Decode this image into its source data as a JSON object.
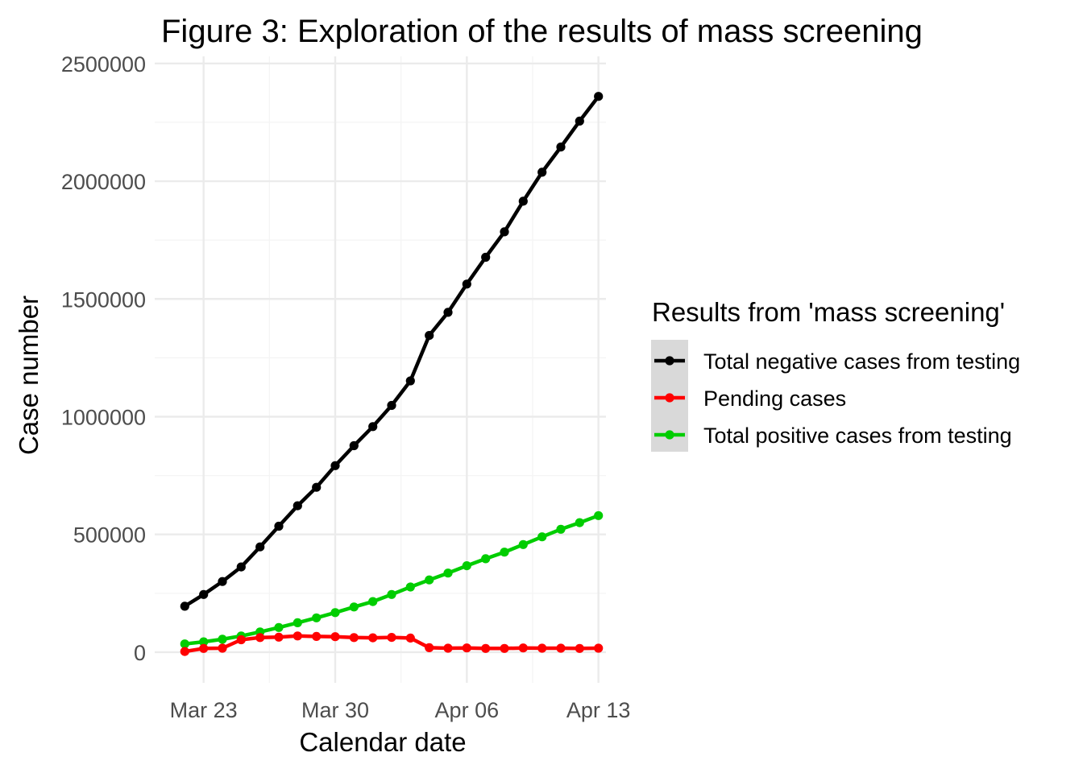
{
  "chart_data": {
    "type": "line",
    "title": "Figure 3: Exploration of the results of mass screening",
    "xlabel": "Calendar date",
    "ylabel": "Case number",
    "x_type": "date",
    "ylim": [
      -130000,
      2530000
    ],
    "xlim": [
      "2020-03-21",
      "2020-04-14"
    ],
    "y_ticks": [
      0,
      500000,
      1000000,
      1500000,
      2000000,
      2500000
    ],
    "y_tick_labels": [
      "0",
      "500000",
      "1000000",
      "1500000",
      "2000000",
      "2500000"
    ],
    "x_ticks": [
      "2020-03-23",
      "2020-03-30",
      "2020-04-06",
      "2020-04-13"
    ],
    "x_tick_labels": [
      "Mar 23",
      "Mar 30",
      "Apr 06",
      "Apr 13"
    ],
    "grid": true,
    "legend_title": "Results from 'mass screening'",
    "legend_position": "right",
    "x": [
      "2020-03-22",
      "2020-03-23",
      "2020-03-24",
      "2020-03-25",
      "2020-03-26",
      "2020-03-27",
      "2020-03-28",
      "2020-03-29",
      "2020-03-30",
      "2020-03-31",
      "2020-04-01",
      "2020-04-02",
      "2020-04-03",
      "2020-04-04",
      "2020-04-05",
      "2020-04-06",
      "2020-04-07",
      "2020-04-08",
      "2020-04-09",
      "2020-04-10",
      "2020-04-11",
      "2020-04-12",
      "2020-04-13"
    ],
    "series": [
      {
        "name": "Total negative cases from testing",
        "color": "#000000",
        "values": [
          195000,
          245000,
          300000,
          362000,
          447000,
          535000,
          622000,
          700000,
          792000,
          877000,
          958000,
          1048000,
          1152000,
          1345000,
          1443000,
          1563000,
          1677000,
          1785000,
          1915000,
          2038000,
          2145000,
          2255000,
          2360000
        ]
      },
      {
        "name": "Pending cases",
        "color": "#ff0000",
        "values": [
          3000,
          16000,
          17000,
          53000,
          62000,
          64000,
          69000,
          67000,
          66000,
          62000,
          61000,
          63000,
          60000,
          19000,
          17000,
          18000,
          16000,
          16000,
          18000,
          17000,
          17000,
          16000,
          17000
        ]
      },
      {
        "name": "Total positive cases from testing",
        "color": "#00cd00",
        "values": [
          35000,
          44000,
          55000,
          69000,
          86000,
          105000,
          125000,
          146000,
          168000,
          192000,
          215000,
          245000,
          277000,
          307000,
          336000,
          367000,
          397000,
          425000,
          457000,
          490000,
          522000,
          550000,
          580000
        ]
      }
    ]
  }
}
